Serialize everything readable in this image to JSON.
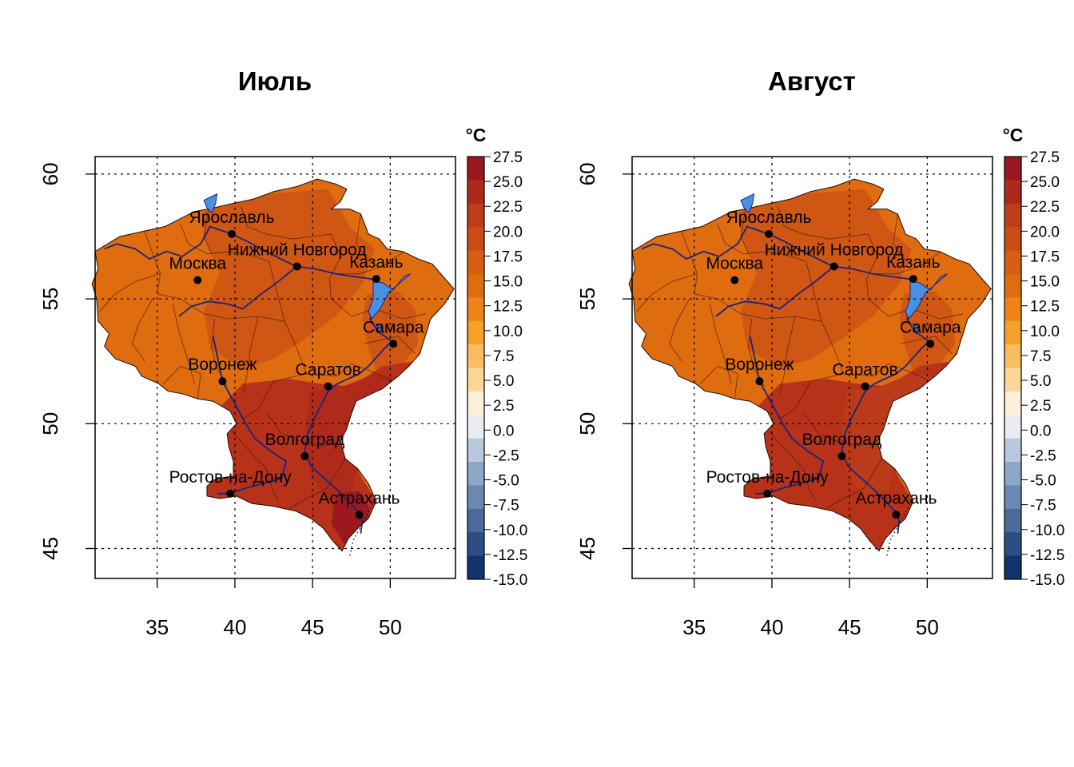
{
  "panels": [
    {
      "id": "july",
      "title": "Июль",
      "region_colors": {
        "north": "#e06c10",
        "central": "#cf5613",
        "south": "#b8321a",
        "southeast": "#b02a1a",
        "hot": "#9b1820"
      }
    },
    {
      "id": "august",
      "title": "Август",
      "region_colors": {
        "north": "#e06c10",
        "central": "#cf5613",
        "south": "#b8321a",
        "southeast": "#bb3a19",
        "hot": "#b8321a"
      }
    }
  ],
  "map": {
    "lon_range": [
      31,
      54.2
    ],
    "lat_range": [
      43.8,
      60.7
    ],
    "x_ticks": [
      "35",
      "40",
      "45",
      "50"
    ],
    "y_ticks": [
      "45",
      "50",
      "55",
      "60"
    ],
    "grid": "dotted",
    "river_color": "#1a237e",
    "water_color": "#4a90e2",
    "cities": [
      {
        "name": "Ярославль",
        "lon": 39.8,
        "lat": 57.6
      },
      {
        "name": "Нижний Новгород",
        "lon": 44.0,
        "lat": 56.3
      },
      {
        "name": "Казань",
        "lon": 49.1,
        "lat": 55.8
      },
      {
        "name": "Москва",
        "lon": 37.6,
        "lat": 55.75
      },
      {
        "name": "Самара",
        "lon": 50.2,
        "lat": 53.2
      },
      {
        "name": "Воронеж",
        "lon": 39.2,
        "lat": 51.7
      },
      {
        "name": "Саратов",
        "lon": 46.0,
        "lat": 51.5
      },
      {
        "name": "Волгоград",
        "lon": 44.5,
        "lat": 48.7
      },
      {
        "name": "Ростов-на-Дону",
        "lon": 39.7,
        "lat": 47.2
      },
      {
        "name": "Астрахань",
        "lon": 48.0,
        "lat": 46.35
      }
    ]
  },
  "legend": {
    "title": "°C",
    "labels": [
      "27.5",
      "25.0",
      "22.5",
      "20.0",
      "17.5",
      "15.0",
      "12.5",
      "10.0",
      "7.5",
      "5.0",
      "2.5",
      "0.0",
      "-2.5",
      "-5.0",
      "-7.5",
      "-10.0",
      "-12.5",
      "-15.0"
    ],
    "colors": [
      "#9b1820",
      "#ad2a1b",
      "#bd3d18",
      "#c94d14",
      "#d65e12",
      "#e06c10",
      "#ef8318",
      "#f6a02c",
      "#f9bc5e",
      "#fbd797",
      "#fdf0d8",
      "#e9ecf0",
      "#b9c9dd",
      "#8ea7c6",
      "#6b89b0",
      "#4a6b99",
      "#2b4f85",
      "#12346e"
    ]
  }
}
